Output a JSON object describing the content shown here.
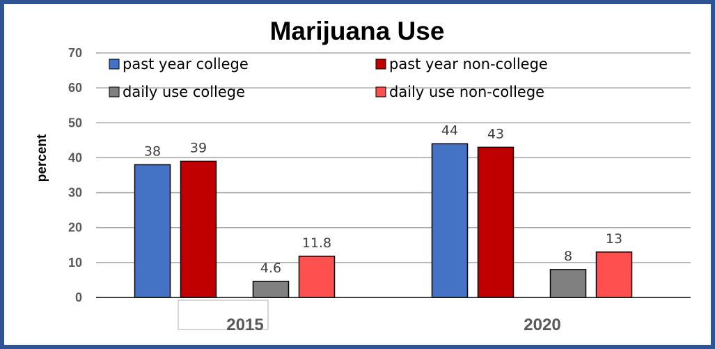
{
  "chart_data": {
    "type": "bar",
    "title": "Marijuana Use",
    "xlabel": "",
    "ylabel": "percent",
    "ylim": [
      0,
      70
    ],
    "yticks": [
      "0",
      "10",
      "20",
      "30",
      "40",
      "50",
      "60",
      "70"
    ],
    "grid": true,
    "legend_position": "top",
    "categories": [
      "2015",
      "2020"
    ],
    "series": [
      {
        "name": "past year college",
        "color": "#4472c4",
        "values": [
          38,
          44
        ],
        "labels": [
          "38",
          "44"
        ]
      },
      {
        "name": "past year non-college",
        "color": "#c00000",
        "values": [
          39,
          43
        ],
        "labels": [
          "39",
          "43"
        ]
      },
      {
        "name": "daily use college",
        "color": "#808080",
        "values": [
          4.6,
          8
        ],
        "labels": [
          "4.6",
          "8"
        ]
      },
      {
        "name": "daily use non-college",
        "color": "#ff5050",
        "values": [
          11.8,
          13
        ],
        "labels": [
          "11.8",
          "13"
        ]
      }
    ]
  }
}
